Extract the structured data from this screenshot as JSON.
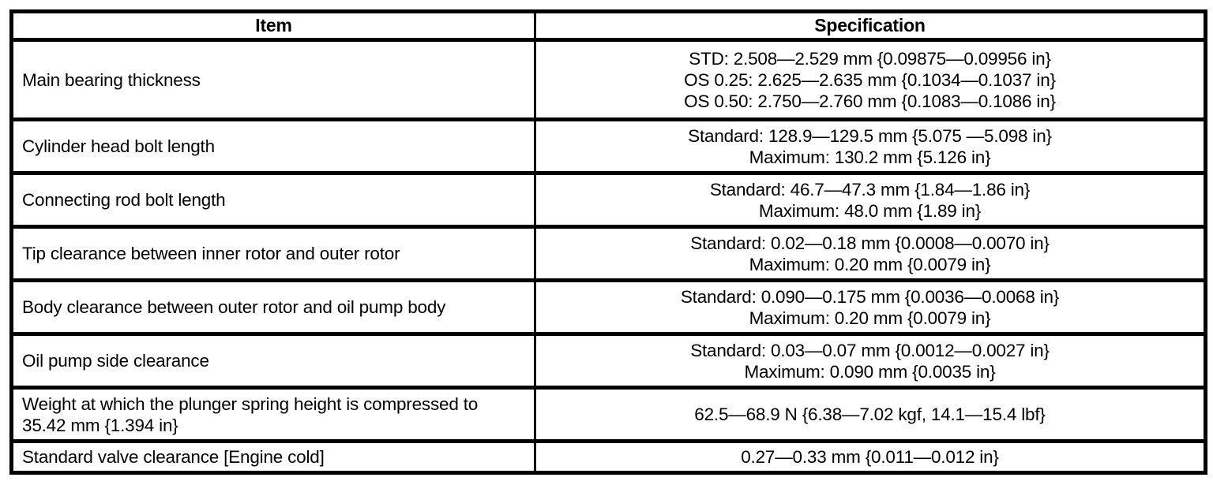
{
  "table": {
    "headers": {
      "item": "Item",
      "spec": "Specification"
    },
    "rows": [
      {
        "item": "Main bearing thickness",
        "specs": [
          "STD: 2.508—2.529 mm {0.09875—0.09956 in}",
          "OS 0.25: 2.625—2.635 mm {0.1034—0.1037 in}",
          "OS 0.50: 2.750—2.760 mm {0.1083—0.1086 in}"
        ]
      },
      {
        "item": "Cylinder head bolt length",
        "specs": [
          "Standard: 128.9—129.5 mm {5.075 —5.098 in}",
          "Maximum: 130.2 mm {5.126 in}"
        ]
      },
      {
        "item": "Connecting rod bolt length",
        "specs": [
          "Standard: 46.7—47.3 mm {1.84—1.86 in}",
          "Maximum: 48.0 mm {1.89 in}"
        ]
      },
      {
        "item": "Tip clearance between inner rotor and outer rotor",
        "specs": [
          "Standard: 0.02—0.18 mm {0.0008—0.0070 in}",
          "Maximum: 0.20 mm {0.0079 in}"
        ]
      },
      {
        "item": "Body clearance between outer rotor and oil pump body",
        "specs": [
          "Standard: 0.090—0.175 mm {0.0036—0.0068 in}",
          "Maximum: 0.20 mm {0.0079 in}"
        ]
      },
      {
        "item": "Oil pump side clearance",
        "specs": [
          "Standard: 0.03—0.07 mm {0.0012—0.0027 in}",
          "Maximum: 0.090 mm {0.0035 in}"
        ]
      },
      {
        "item": "Weight at which the plunger spring height is compressed to 35.42 mm {1.394 in}",
        "specs": [
          "62.5—68.9 N {6.38—7.02 kgf, 14.1—15.4 lbf}"
        ]
      },
      {
        "item": "Standard valve clearance [Engine cold]",
        "specs": [
          "0.27—0.33 mm {0.011—0.012 in}"
        ]
      }
    ]
  }
}
